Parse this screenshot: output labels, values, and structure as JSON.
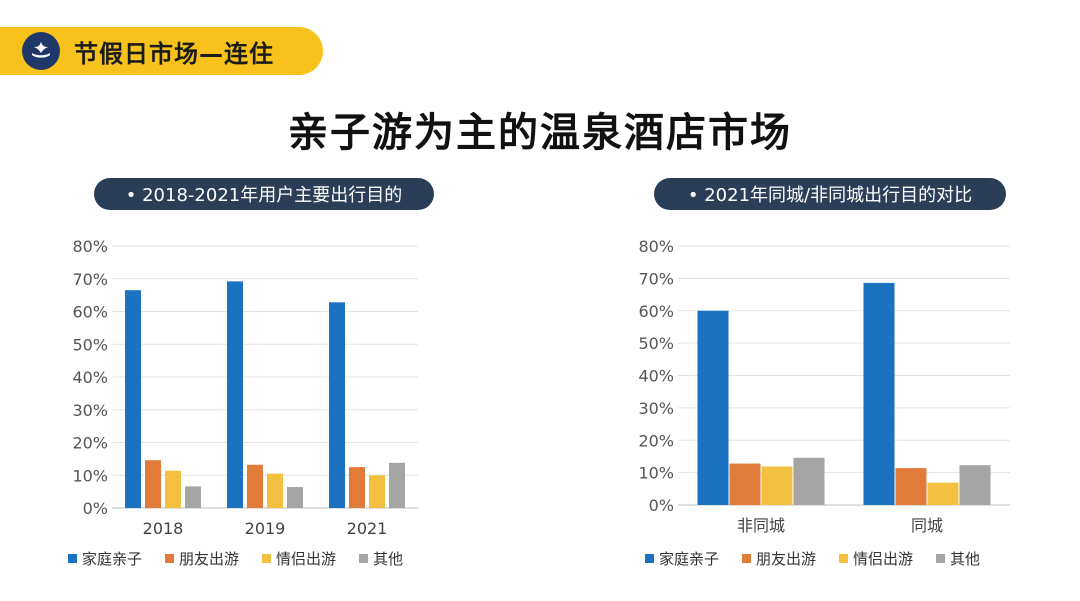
{
  "header": {
    "tag_label": "节假日市场—连住",
    "title": "亲子游为主的温泉酒店市场"
  },
  "colors": {
    "tag_background": "#f7c21b",
    "logo_background": "#1f3868",
    "pill_background": "#2c3e57"
  },
  "chart_data": [
    {
      "type": "bar",
      "title": "• 2018-2021年用户主要出行目的",
      "categories": [
        "2018",
        "2019",
        "2021"
      ],
      "series": [
        {
          "name": "家庭亲子",
          "color": "#1a72c1",
          "values": [
            66.5,
            69.2,
            62.8
          ]
        },
        {
          "name": "朋友出游",
          "color": "#e07b39",
          "values": [
            14.6,
            13.2,
            12.5
          ]
        },
        {
          "name": "情侣出游",
          "color": "#f3c042",
          "values": [
            11.4,
            10.5,
            10.0
          ]
        },
        {
          "name": "其他",
          "color": "#a5a5a5",
          "values": [
            6.6,
            6.4,
            13.8
          ]
        }
      ],
      "ylim": [
        0,
        80
      ],
      "yticks": [
        "0%",
        "10%",
        "20%",
        "30%",
        "40%",
        "50%",
        "60%",
        "70%",
        "80%"
      ],
      "xlabel": "",
      "ylabel": "",
      "grid": true,
      "legend": "bottom"
    },
    {
      "type": "bar",
      "title": "• 2021年同城/非同城出行目的对比",
      "categories": [
        "非同城",
        "同城"
      ],
      "series": [
        {
          "name": "家庭亲子",
          "color": "#1a72c1",
          "values": [
            60.0,
            68.6
          ]
        },
        {
          "name": "朋友出游",
          "color": "#e07b39",
          "values": [
            12.8,
            11.4
          ]
        },
        {
          "name": "情侣出游",
          "color": "#f3c042",
          "values": [
            11.9,
            6.9
          ]
        },
        {
          "name": "其他",
          "color": "#a5a5a5",
          "values": [
            14.6,
            12.3
          ]
        }
      ],
      "ylim": [
        0,
        80
      ],
      "yticks": [
        "0%",
        "10%",
        "20%",
        "30%",
        "40%",
        "50%",
        "60%",
        "70%",
        "80%"
      ],
      "xlabel": "",
      "ylabel": "",
      "grid": true,
      "legend": "bottom"
    }
  ]
}
